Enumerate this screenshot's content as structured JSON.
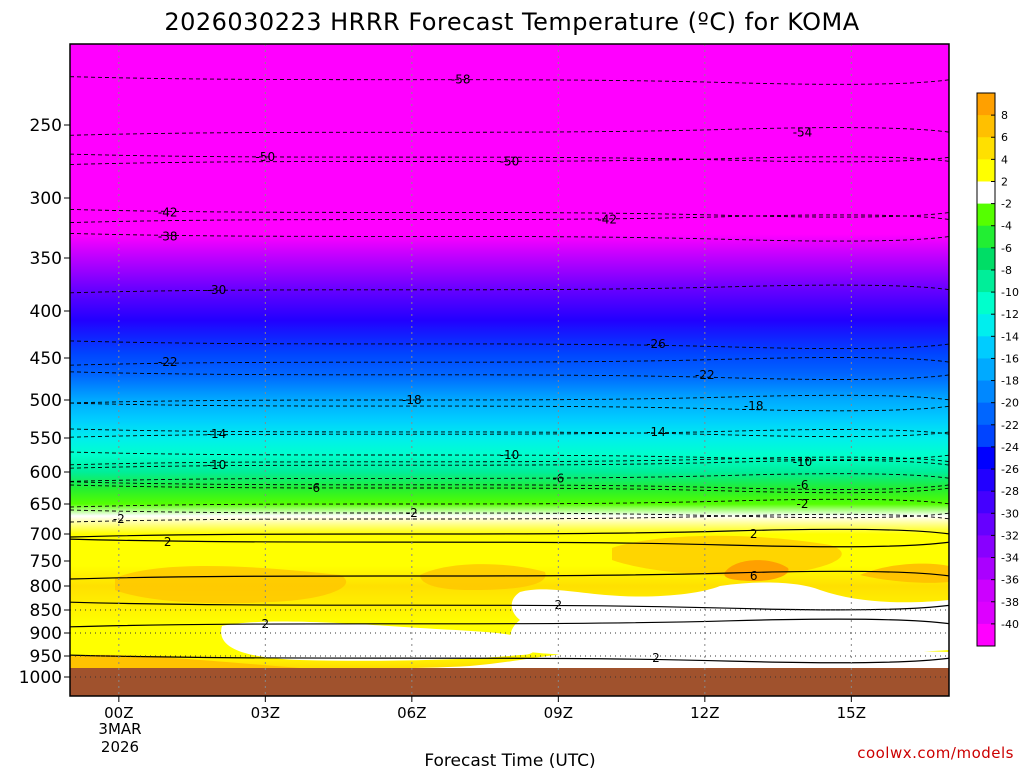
{
  "chart_data": {
    "type": "heatmap",
    "title": "2026030223 HRRR Forecast Temperature (ºC) for KOMA",
    "xlabel": "Forecast Time (UTC)",
    "ylabel": "",
    "x_ticks": [
      "00Z",
      "03Z",
      "06Z",
      "09Z",
      "12Z",
      "15Z"
    ],
    "x_tick_hours": [
      0,
      3,
      6,
      9,
      12,
      15
    ],
    "x_date_line1": "3MAR",
    "x_date_line2": "2026",
    "xlim_hours": [
      -1,
      17
    ],
    "y_ticks": [
      250,
      300,
      350,
      400,
      450,
      500,
      550,
      600,
      650,
      700,
      750,
      800,
      850,
      900,
      950,
      1000
    ],
    "ylim_hpa": [
      200,
      1000
    ],
    "legend_position": "right",
    "colorbar_labels": [
      "8",
      "6",
      "4",
      "2",
      "-2",
      "-4",
      "-6",
      "-8",
      "-10",
      "-12",
      "-14",
      "-16",
      "-18",
      "-20",
      "-22",
      "-24",
      "-26",
      "-28",
      "-30",
      "-32",
      "-34",
      "-36",
      "-38",
      "-40"
    ],
    "colorbar_colors": [
      "#ffa000",
      "#ffc000",
      "#ffe000",
      "#ffff00",
      "#ffffff",
      "#55ff00",
      "#22ee33",
      "#00dd66",
      "#00ee99",
      "#00ffcc",
      "#00eeee",
      "#00ccff",
      "#00aaff",
      "#0088ff",
      "#0066ff",
      "#0044ff",
      "#0000ff",
      "#2200ff",
      "#4400ff",
      "#6600ff",
      "#8800ff",
      "#aa00ff",
      "#cc00ff",
      "#dd00ff",
      "#ff00ff"
    ],
    "color_stops": [
      {
        "hpa": 200,
        "temp": -60
      },
      {
        "hpa": 330,
        "temp": -42
      },
      {
        "hpa": 345,
        "temp": -38
      },
      {
        "hpa": 380,
        "temp": -32
      },
      {
        "hpa": 410,
        "temp": -28
      },
      {
        "hpa": 445,
        "temp": -24
      },
      {
        "hpa": 470,
        "temp": -21
      },
      {
        "hpa": 500,
        "temp": -18
      },
      {
        "hpa": 525,
        "temp": -16
      },
      {
        "hpa": 550,
        "temp": -14
      },
      {
        "hpa": 575,
        "temp": -11
      },
      {
        "hpa": 600,
        "temp": -9
      },
      {
        "hpa": 625,
        "temp": -6
      },
      {
        "hpa": 650,
        "temp": -3
      },
      {
        "hpa": 670,
        "temp": 0
      },
      {
        "hpa": 700,
        "temp": 2.5
      },
      {
        "hpa": 760,
        "temp": 3.5
      },
      {
        "hpa": 800,
        "temp": 4
      },
      {
        "hpa": 880,
        "temp": 2
      },
      {
        "hpa": 945,
        "temp": 2.5
      },
      {
        "hpa": 975,
        "temp": 4
      }
    ],
    "contours": [
      {
        "label": "-58",
        "style": "dashed",
        "hpa": 222,
        "label_hour": 7
      },
      {
        "label": "-54",
        "style": "dashed",
        "hpa": 255,
        "label_hour": 14
      },
      {
        "label": "-50",
        "style": "dashed",
        "hpa": 272,
        "label_hour": 3
      },
      {
        "label": "-50",
        "style": "dashed",
        "hpa": 275,
        "label_hour": 8
      },
      {
        "label": "-42",
        "style": "dashed",
        "hpa": 312,
        "label_hour": 1
      },
      {
        "label": "-42",
        "style": "dashed",
        "hpa": 318,
        "label_hour": 10
      },
      {
        "label": "-38",
        "style": "dashed",
        "hpa": 332,
        "label_hour": 1
      },
      {
        "label": "-30",
        "style": "dashed",
        "hpa": 380,
        "label_hour": 2
      },
      {
        "label": "-26",
        "style": "dashed",
        "hpa": 435,
        "label_hour": 11
      },
      {
        "label": "-22",
        "style": "dashed",
        "hpa": 455,
        "label_hour": 1
      },
      {
        "label": "-22",
        "style": "dashed",
        "hpa": 470,
        "label_hour": 12
      },
      {
        "label": "-18",
        "style": "dashed",
        "hpa": 500,
        "label_hour": 6
      },
      {
        "label": "-18",
        "style": "dashed",
        "hpa": 508,
        "label_hour": 13
      },
      {
        "label": "-14",
        "style": "dashed",
        "hpa": 545,
        "label_hour": 2
      },
      {
        "label": "-14",
        "style": "dashed",
        "hpa": 542,
        "label_hour": 11
      },
      {
        "label": "-10",
        "style": "dashed",
        "hpa": 590,
        "label_hour": 2
      },
      {
        "label": "-10",
        "style": "dashed",
        "hpa": 575,
        "label_hour": 8
      },
      {
        "label": "-10",
        "style": "dashed",
        "hpa": 585,
        "label_hour": 14
      },
      {
        "label": "-6",
        "style": "dashed",
        "hpa": 625,
        "label_hour": 4
      },
      {
        "label": "-6",
        "style": "dashed",
        "hpa": 610,
        "label_hour": 9
      },
      {
        "label": "-6",
        "style": "dashed",
        "hpa": 620,
        "label_hour": 14
      },
      {
        "label": "-2",
        "style": "dashed",
        "hpa": 675,
        "label_hour": 0
      },
      {
        "label": "-2",
        "style": "dashed",
        "hpa": 665,
        "label_hour": 6
      },
      {
        "label": "-2",
        "style": "dashed",
        "hpa": 650,
        "label_hour": 14
      },
      {
        "label": "2",
        "style": "solid",
        "hpa": 715,
        "label_hour": 1
      },
      {
        "label": "2",
        "style": "solid",
        "hpa": 700,
        "label_hour": 13
      },
      {
        "label": "2",
        "style": "solid",
        "hpa": 840,
        "label_hour": 9
      },
      {
        "label": "2",
        "style": "solid",
        "hpa": 880,
        "label_hour": 3
      },
      {
        "label": "2",
        "style": "solid",
        "hpa": 955,
        "label_hour": 11
      },
      {
        "label": "6",
        "style": "solid",
        "hpa": 780,
        "label_hour": 13
      }
    ]
  },
  "credit": "coolwx.com/models"
}
